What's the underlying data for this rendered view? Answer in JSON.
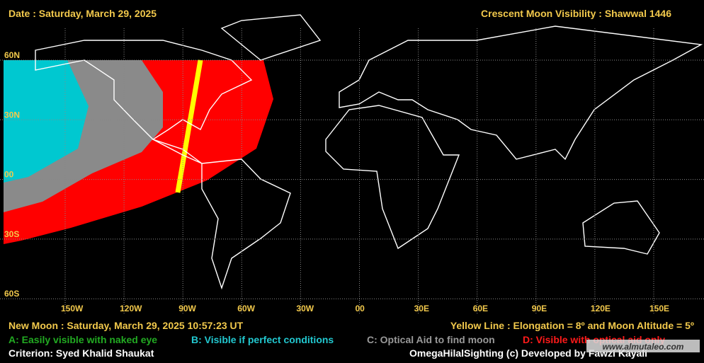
{
  "header": {
    "date": "Date : Saturday, March 29, 2025",
    "title": "Crescent Moon Visibility : Shawwal  1446"
  },
  "grid": {
    "lat_labels": [
      "60N",
      "30N",
      "00",
      "30S",
      "60S"
    ],
    "lon_labels": [
      "150W",
      "120W",
      "90W",
      "60W",
      "30W",
      "00",
      "30E",
      "60E",
      "90E",
      "120E",
      "150E"
    ]
  },
  "footer": {
    "new_moon": "New Moon : Saturday, March 29, 2025  10:57:23  UT",
    "yellow_line": "Yellow Line : Elongation = 8º  and Moon Altitude = 5º",
    "criterion": "Criterion: Syed Khalid Shaukat",
    "credit": "OmegaHilalSighting  (c)  Developed by Fawzi Kayali",
    "watermark": "www.almutaleo.com"
  },
  "legend": {
    "a": "A: Easily visible with naked eye",
    "b": "B: Visible if perfect conditions",
    "c": "C: Optical Aid to find moon",
    "d": "D: Visible with optical aid only"
  }
}
